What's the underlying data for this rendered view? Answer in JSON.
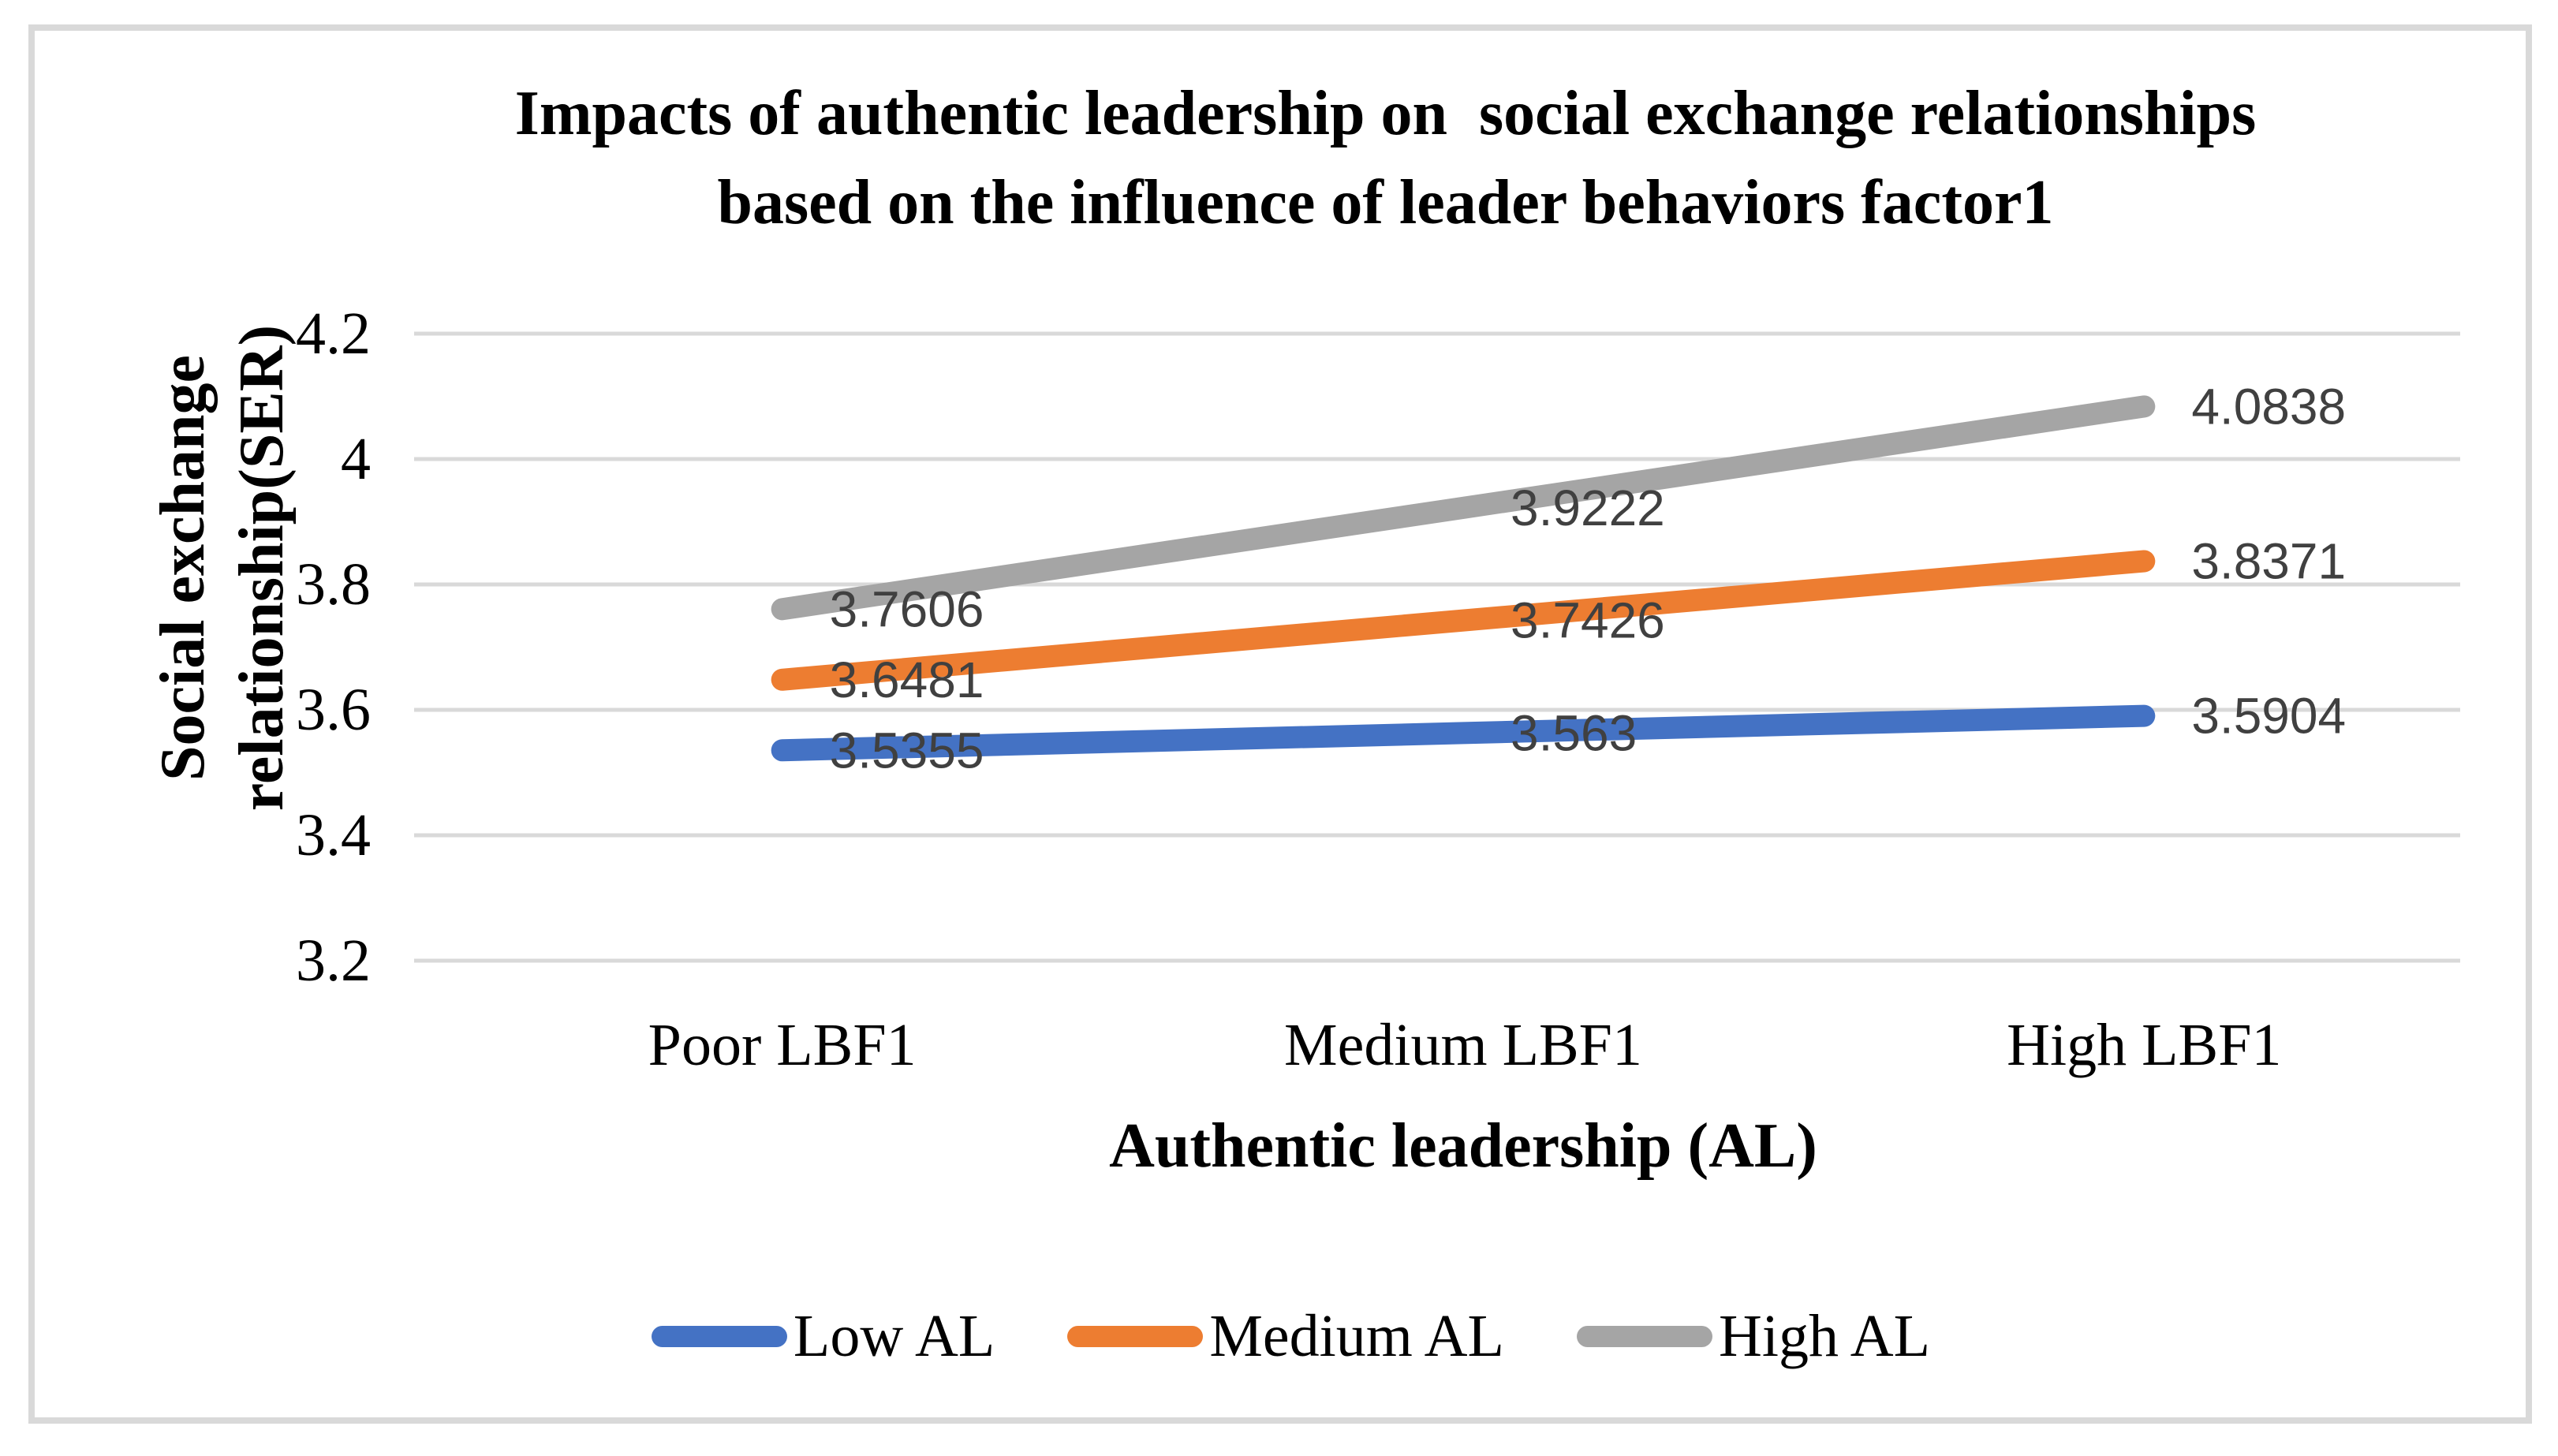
{
  "chart_data": {
    "type": "line",
    "title": "Impacts of authentic leadership on  social exchange relationships based on the influence of leader behaviors factor1",
    "title_lines": [
      "Impacts of authentic leadership on  social exchange relationships",
      "based on the influence of leader behaviors factor1"
    ],
    "xlabel": "Authentic leadership (AL)",
    "ylabel": "Social exchange relationship(SER)",
    "ylabel_lines": [
      "Social exchange",
      "relationship(SER)"
    ],
    "categories": [
      "Poor LBF1",
      "Medium LBF1",
      "High LBF1"
    ],
    "series": [
      {
        "name": "Low AL",
        "color": "#4472C4",
        "values": [
          3.5355,
          3.563,
          3.5904
        ],
        "labels": [
          "3.5355",
          "3.563",
          "3.5904"
        ]
      },
      {
        "name": "Medium AL",
        "color": "#ED7D31",
        "values": [
          3.6481,
          3.7426,
          3.8371
        ],
        "labels": [
          "3.6481",
          "3.7426",
          "3.8371"
        ]
      },
      {
        "name": "High AL",
        "color": "#A5A5A5",
        "values": [
          3.7606,
          3.9222,
          4.0838
        ],
        "labels": [
          "3.7606",
          "3.9222",
          "4.0838"
        ]
      }
    ],
    "y_ticks": [
      "4.2",
      "4",
      "3.8",
      "3.6",
      "3.4",
      "3.2"
    ],
    "ylim": [
      3.2,
      4.2
    ],
    "grid": true,
    "legend_position": "bottom",
    "colors": {
      "gridline": "#D9D9D9",
      "frame_border": "#D9D9D9",
      "data_label": "#404040",
      "text": "#000000"
    }
  }
}
